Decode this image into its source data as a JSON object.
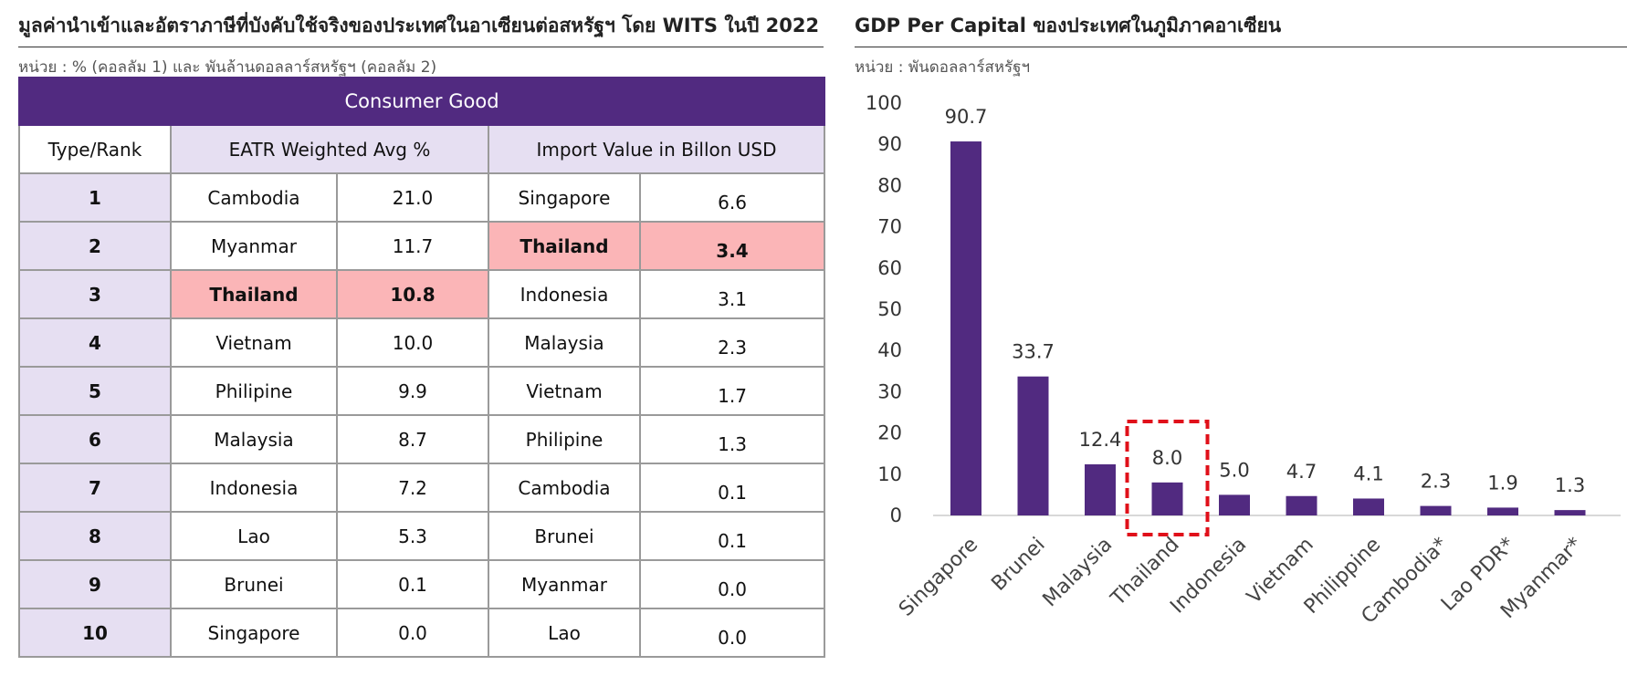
{
  "left": {
    "heading": "มูลค่านำเข้าและอัตราภาษีที่บังคับใช้จริงของประเทศในอาเซียนต่อสหรัฐฯ โดย WITS ในปี 2022",
    "unit": "หน่วย : % (คอลลัม 1) และ พันล้านดอลลาร์สหรัฐฯ (คอลลัม 2)",
    "banner": "Consumer Good",
    "col_rank": "Type/Rank",
    "col_eatr": "EATR Weighted Avg %",
    "col_import": "Import Value in Billon USD",
    "rows": [
      {
        "rank": "1",
        "eatr_country": "Cambodia",
        "eatr_value": "21.0",
        "import_country": "Singapore",
        "import_value": "6.6"
      },
      {
        "rank": "2",
        "eatr_country": "Myanmar",
        "eatr_value": "11.7",
        "import_country": "Thailand",
        "import_value": "3.4"
      },
      {
        "rank": "3",
        "eatr_country": "Thailand",
        "eatr_value": "10.8",
        "import_country": "Indonesia",
        "import_value": "3.1"
      },
      {
        "rank": "4",
        "eatr_country": "Vietnam",
        "eatr_value": "10.0",
        "import_country": "Malaysia",
        "import_value": "2.3"
      },
      {
        "rank": "5",
        "eatr_country": "Philipine",
        "eatr_value": "9.9",
        "import_country": "Vietnam",
        "import_value": "1.7"
      },
      {
        "rank": "6",
        "eatr_country": "Malaysia",
        "eatr_value": "8.7",
        "import_country": "Philipine",
        "import_value": "1.3"
      },
      {
        "rank": "7",
        "eatr_country": "Indonesia",
        "eatr_value": "7.2",
        "import_country": "Cambodia",
        "import_value": "0.1"
      },
      {
        "rank": "8",
        "eatr_country": "Lao",
        "eatr_value": "5.3",
        "import_country": "Brunei",
        "import_value": "0.1"
      },
      {
        "rank": "9",
        "eatr_country": "Brunei",
        "eatr_value": "0.1",
        "import_country": "Myanmar",
        "import_value": "0.0"
      },
      {
        "rank": "10",
        "eatr_country": "Singapore",
        "eatr_value": "0.0",
        "import_country": "Lao",
        "import_value": "0.0"
      }
    ],
    "highlight_color": "#fbb5b7",
    "header_color": "#512a80",
    "rank_bg_color": "#e6dff2"
  },
  "right": {
    "heading": "GDP Per Capital ของประเทศในภูมิภาคอาเซียน",
    "unit": "หน่วย : พันดอลลาร์สหรัฐฯ"
  },
  "chart_data": {
    "type": "bar",
    "categories": [
      "Singapore",
      "Brunei",
      "Malaysia",
      "Thailand",
      "Indonesia",
      "Vietnam",
      "Philippine",
      "Cambodia*",
      "Lao PDR*",
      "Myanmar*"
    ],
    "values": [
      90.7,
      33.7,
      12.4,
      8.0,
      5.0,
      4.7,
      4.1,
      2.3,
      1.9,
      1.3
    ],
    "data_labels": [
      "90.7",
      "33.7",
      "12.4",
      "8.0",
      "5.0",
      "4.7",
      "4.1",
      "2.3",
      "1.9",
      "1.3"
    ],
    "y_ticks": [
      "0",
      "10",
      "20",
      "30",
      "40",
      "50",
      "60",
      "70",
      "80",
      "90",
      "100"
    ],
    "ylim": [
      0,
      100
    ],
    "grid": false,
    "bar_color": "#512a80",
    "highlight_category": "Thailand",
    "highlight_color": "#e0101a"
  }
}
